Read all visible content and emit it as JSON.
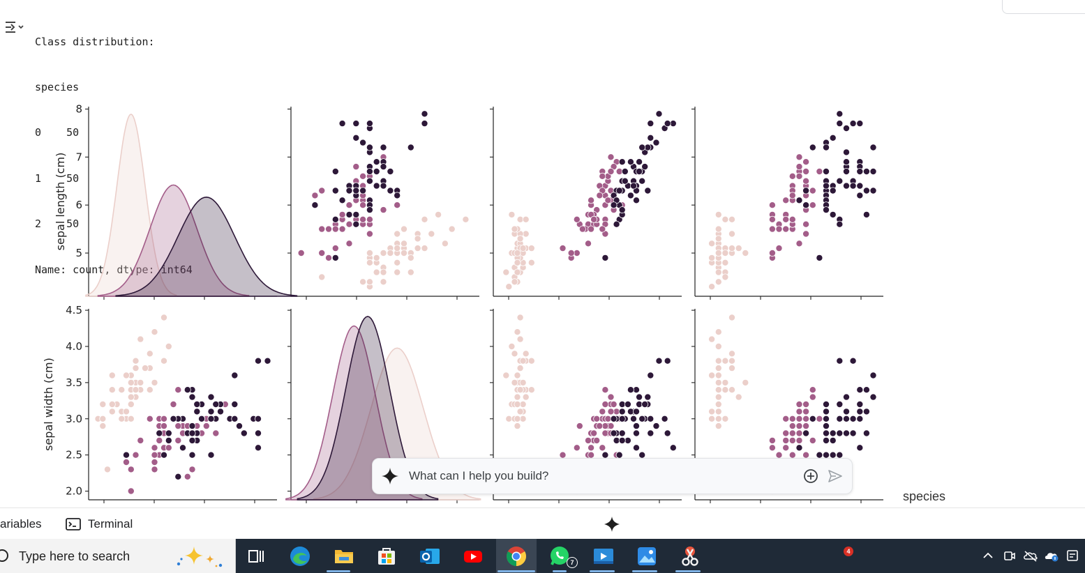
{
  "notebook": {
    "output_lines": [
      "Class distribution:",
      "species",
      "0    50",
      "1    50",
      "2    50",
      "Name: count, dtype: int64"
    ]
  },
  "palette": {
    "species_0": "#ebcfca",
    "species_1": "#a35d89",
    "species_2": "#2d1838"
  },
  "chart_data": {
    "type": "scatter",
    "subtype": "pairplot",
    "hue": "species",
    "legend_title": "species",
    "variables": [
      "sepal length (cm)",
      "sepal width (cm)"
    ],
    "row_axes": [
      {
        "ylabel": "sepal length (cm)",
        "ticks": [
          "5",
          "6",
          "7",
          "8"
        ],
        "ylim": [
          4.1,
          8.05
        ]
      },
      {
        "ylabel": "sepal width (cm)",
        "ticks": [
          "2.0",
          "2.5",
          "3.0",
          "3.5",
          "4.0",
          "4.5"
        ],
        "ylim": [
          1.88,
          4.52
        ]
      }
    ],
    "kde": [
      {
        "variable": "sepal length (cm)",
        "species": 0,
        "mean": 5.0,
        "sd": 0.3,
        "peak_density": 0.9
      },
      {
        "variable": "sepal length (cm)",
        "species": 1,
        "mean": 5.9,
        "sd": 0.5,
        "peak_density": 0.55
      },
      {
        "variable": "sepal length (cm)",
        "species": 2,
        "mean": 6.6,
        "sd": 0.6,
        "peak_density": 0.49
      },
      {
        "variable": "sepal width (cm)",
        "species": 0,
        "mean": 3.4,
        "sd": 0.38,
        "peak_density": 0.96
      },
      {
        "variable": "sepal width (cm)",
        "species": 1,
        "mean": 2.77,
        "sd": 0.31,
        "peak_density": 1.1
      },
      {
        "variable": "sepal width (cm)",
        "species": 2,
        "mean": 2.97,
        "sd": 0.32,
        "peak_density": 1.16
      }
    ],
    "series": [
      {
        "species": 0,
        "x_sepal_length": [
          5.1,
          4.9,
          4.7,
          4.6,
          5.0,
          5.4,
          4.6,
          5.0,
          4.4,
          4.9,
          5.4,
          4.8,
          4.8,
          4.3,
          5.8,
          5.7,
          5.4,
          5.1,
          5.7,
          5.1,
          5.4,
          5.1,
          4.6,
          5.1,
          4.8,
          5.0,
          5.0,
          5.2,
          5.2,
          4.7,
          4.8,
          5.4,
          5.2,
          5.5,
          4.9,
          5.0,
          5.5,
          4.9,
          4.4,
          5.1,
          5.0,
          4.5,
          4.4,
          5.0,
          5.1,
          4.8,
          5.1,
          4.6,
          5.3,
          5.0
        ],
        "y_sepal_width": [
          3.5,
          3.0,
          3.2,
          3.1,
          3.6,
          3.9,
          3.4,
          3.4,
          2.9,
          3.1,
          3.7,
          3.4,
          3.0,
          3.0,
          4.0,
          4.4,
          3.9,
          3.5,
          3.8,
          3.8,
          3.4,
          3.7,
          3.6,
          3.3,
          3.4,
          3.0,
          3.4,
          3.5,
          3.4,
          3.2,
          3.1,
          3.4,
          4.1,
          4.2,
          3.1,
          3.2,
          3.5,
          3.6,
          3.0,
          3.4,
          3.5,
          2.3,
          3.2,
          3.5,
          3.8,
          3.0,
          3.8,
          3.2,
          3.7,
          3.3
        ]
      },
      {
        "species": 1,
        "x_sepal_length": [
          7.0,
          6.4,
          6.9,
          5.5,
          6.5,
          5.7,
          6.3,
          4.9,
          6.6,
          5.2,
          5.0,
          5.9,
          6.0,
          6.1,
          5.6,
          6.7,
          5.6,
          5.8,
          6.2,
          5.6,
          5.9,
          6.1,
          6.3,
          6.1,
          6.4,
          6.6,
          6.8,
          6.7,
          6.0,
          5.7,
          5.5,
          5.5,
          5.8,
          6.0,
          5.4,
          6.0,
          6.7,
          6.3,
          5.6,
          5.5,
          5.5,
          6.1,
          5.8,
          5.0,
          5.6,
          5.7,
          5.7,
          6.2,
          5.1,
          5.7
        ],
        "y_sepal_width": [
          3.2,
          3.2,
          3.1,
          2.3,
          2.8,
          2.8,
          3.3,
          2.4,
          2.9,
          2.7,
          2.0,
          3.0,
          2.2,
          2.9,
          2.9,
          3.1,
          3.0,
          2.7,
          2.2,
          2.5,
          3.2,
          2.8,
          2.5,
          2.8,
          2.9,
          3.0,
          2.8,
          3.0,
          2.9,
          2.6,
          2.4,
          2.4,
          2.7,
          2.7,
          3.0,
          3.4,
          3.1,
          2.3,
          3.0,
          2.5,
          2.6,
          3.0,
          2.6,
          2.3,
          2.7,
          3.0,
          2.9,
          2.9,
          2.5,
          2.8
        ]
      },
      {
        "species": 2,
        "x_sepal_length": [
          6.3,
          5.8,
          7.1,
          6.3,
          6.5,
          7.6,
          4.9,
          7.3,
          6.7,
          7.2,
          6.5,
          6.4,
          6.8,
          5.7,
          5.8,
          6.4,
          6.5,
          7.7,
          7.7,
          6.0,
          6.9,
          5.6,
          7.7,
          6.3,
          6.7,
          7.2,
          6.2,
          6.1,
          6.4,
          7.2,
          7.4,
          7.9,
          6.4,
          6.3,
          6.1,
          7.7,
          6.3,
          6.4,
          6.0,
          6.9,
          6.7,
          6.9,
          5.8,
          6.8,
          6.7,
          6.7,
          6.3,
          6.5,
          6.2,
          5.9
        ],
        "y_sepal_width": [
          3.3,
          2.7,
          3.0,
          2.9,
          3.0,
          3.0,
          2.5,
          2.9,
          2.5,
          3.6,
          3.2,
          2.7,
          3.0,
          2.5,
          2.8,
          3.2,
          3.0,
          3.8,
          2.6,
          2.2,
          3.2,
          2.8,
          2.8,
          2.7,
          3.3,
          3.2,
          2.8,
          3.0,
          2.8,
          3.0,
          2.8,
          3.8,
          2.8,
          2.8,
          2.6,
          3.0,
          3.4,
          3.1,
          3.0,
          3.1,
          3.1,
          3.1,
          2.7,
          3.2,
          3.3,
          3.0,
          2.5,
          3.0,
          3.4,
          3.0
        ]
      }
    ],
    "right_column_variables": {
      "species_0": {
        "v3": [
          1.4,
          1.4,
          1.3,
          1.5,
          1.4,
          1.7,
          1.4,
          1.5,
          1.4,
          1.5,
          1.5,
          1.6,
          1.4,
          1.1,
          1.2,
          1.5,
          1.3,
          1.4,
          1.7,
          1.5,
          1.7,
          1.5,
          1.0,
          1.7,
          1.9,
          1.6,
          1.6,
          1.5,
          1.4,
          1.6,
          1.6,
          1.5,
          1.5,
          1.4,
          1.5,
          1.2,
          1.3,
          1.4,
          1.3,
          1.5,
          1.3,
          1.3,
          1.3,
          1.6,
          1.9,
          1.4,
          1.6,
          1.4,
          1.5,
          1.4
        ],
        "v4": [
          0.2,
          0.2,
          0.2,
          0.2,
          0.2,
          0.4,
          0.3,
          0.2,
          0.2,
          0.1,
          0.2,
          0.2,
          0.1,
          0.1,
          0.2,
          0.4,
          0.4,
          0.3,
          0.3,
          0.3,
          0.2,
          0.4,
          0.2,
          0.5,
          0.2,
          0.2,
          0.4,
          0.2,
          0.2,
          0.2,
          0.2,
          0.4,
          0.1,
          0.2,
          0.2,
          0.2,
          0.2,
          0.1,
          0.2,
          0.2,
          0.3,
          0.3,
          0.2,
          0.6,
          0.4,
          0.3,
          0.2,
          0.2,
          0.2,
          0.2
        ]
      },
      "species_1": {
        "v3": [
          4.7,
          4.5,
          4.9,
          4.0,
          4.6,
          4.5,
          4.7,
          3.3,
          4.6,
          3.9,
          3.5,
          4.2,
          4.0,
          4.7,
          3.6,
          4.4,
          4.5,
          4.1,
          4.5,
          3.9,
          4.8,
          4.0,
          4.9,
          4.7,
          4.3,
          4.4,
          4.8,
          5.0,
          4.5,
          3.5,
          3.8,
          3.7,
          3.9,
          5.1,
          4.5,
          4.5,
          4.7,
          4.4,
          4.1,
          4.0,
          4.4,
          4.6,
          4.0,
          3.3,
          4.2,
          4.2,
          4.2,
          4.3,
          3.0,
          4.1
        ],
        "v4": [
          1.4,
          1.5,
          1.5,
          1.3,
          1.5,
          1.3,
          1.6,
          1.0,
          1.3,
          1.4,
          1.0,
          1.5,
          1.0,
          1.4,
          1.3,
          1.4,
          1.5,
          1.0,
          1.5,
          1.1,
          1.8,
          1.3,
          1.5,
          1.2,
          1.3,
          1.4,
          1.4,
          1.7,
          1.5,
          1.0,
          1.1,
          1.0,
          1.2,
          1.6,
          1.5,
          1.6,
          1.5,
          1.3,
          1.3,
          1.3,
          1.2,
          1.4,
          1.2,
          1.0,
          1.3,
          1.2,
          1.3,
          1.3,
          1.1,
          1.3
        ]
      },
      "species_2": {
        "v3": [
          6.0,
          5.1,
          5.9,
          5.6,
          5.8,
          6.6,
          4.5,
          6.3,
          5.8,
          6.1,
          5.1,
          5.3,
          5.5,
          5.0,
          5.1,
          5.3,
          5.5,
          6.7,
          6.9,
          5.0,
          5.7,
          4.9,
          6.7,
          4.9,
          5.7,
          6.0,
          4.8,
          4.9,
          5.6,
          5.8,
          6.1,
          6.4,
          5.6,
          5.1,
          5.6,
          6.1,
          5.6,
          5.5,
          4.8,
          5.4,
          5.6,
          5.1,
          5.1,
          5.9,
          5.7,
          5.2,
          5.0,
          5.2,
          5.4,
          5.1
        ],
        "v4": [
          2.5,
          1.9,
          2.1,
          1.8,
          2.2,
          2.1,
          1.7,
          1.8,
          1.8,
          2.5,
          2.0,
          1.9,
          2.1,
          2.0,
          2.4,
          2.3,
          1.8,
          2.2,
          2.3,
          1.5,
          2.3,
          2.0,
          2.0,
          1.8,
          2.1,
          1.8,
          1.8,
          1.8,
          2.1,
          1.6,
          1.9,
          2.0,
          2.2,
          1.5,
          1.4,
          2.3,
          2.4,
          1.8,
          1.8,
          2.1,
          2.4,
          2.3,
          1.9,
          2.3,
          2.5,
          2.3,
          1.9,
          2.0,
          2.3,
          1.8
        ]
      }
    }
  },
  "assistant_prompt": {
    "placeholder": "What can I help you build?"
  },
  "bottom_tabs": {
    "variables": "ariables",
    "terminal": "Terminal"
  },
  "taskbar": {
    "search_placeholder": "Type here to search",
    "whatsapp_badge": "7",
    "notification_badge": "4",
    "apps": [
      "task-view",
      "edge",
      "file-explorer",
      "microsoft-store",
      "outlook",
      "youtube",
      "chrome",
      "whatsapp",
      "video-editor",
      "photos",
      "snipping-tool"
    ]
  }
}
